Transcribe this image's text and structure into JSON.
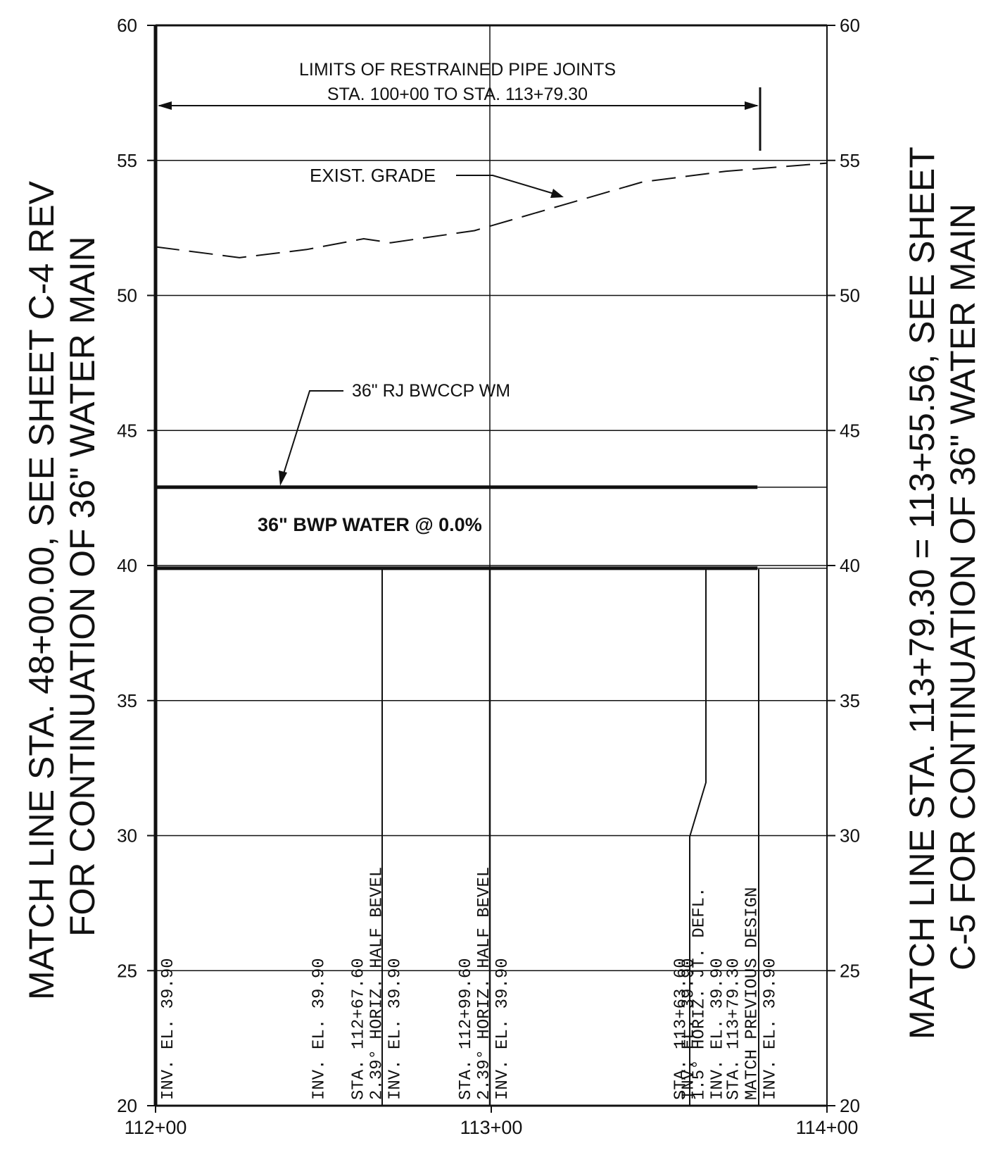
{
  "elevation_axis": {
    "min": 20,
    "max": 60,
    "ticks": [
      "20",
      "25",
      "30",
      "35",
      "40",
      "45",
      "50",
      "55",
      "60"
    ]
  },
  "station_axis": {
    "ticks": [
      "112+00",
      "113+00",
      "114+00"
    ]
  },
  "restrained_limits": {
    "line1": "LIMITS OF RESTRAINED PIPE JOINTS",
    "line2": "STA. 100+00 TO STA. 113+79.30"
  },
  "exist_grade_label": "EXIST.  GRADE",
  "exist_grade_profile": [
    {
      "sta": 112.0,
      "el": 51.8
    },
    {
      "sta": 112.25,
      "el": 51.4
    },
    {
      "sta": 112.45,
      "el": 51.7
    },
    {
      "sta": 112.62,
      "el": 52.1
    },
    {
      "sta": 112.7,
      "el": 51.95
    },
    {
      "sta": 112.95,
      "el": 52.4
    },
    {
      "sta": 113.2,
      "el": 53.3
    },
    {
      "sta": 113.45,
      "el": 54.2
    },
    {
      "sta": 113.7,
      "el": 54.6
    },
    {
      "sta": 114.0,
      "el": 54.9
    }
  ],
  "pipe": {
    "leader_label": "36\" RJ BWCCP WM",
    "profile_label": "36\"  BWP   WATER  @  0.0%",
    "top_el": 42.9,
    "invert_el": 39.9,
    "start_sta": 112.0,
    "end_sta": 113.793
  },
  "vertical_labels": [
    {
      "sta": 112.0,
      "lines": [
        "INV.  EL.  39.90"
      ]
    },
    {
      "sta": 112.45,
      "lines": [
        "INV.  EL.  39.90"
      ]
    },
    {
      "sta": 112.676,
      "lines": [
        "STA.  112+67.60",
        "2.39° HORIZ.  HALF  BEVEL",
        "INV.  EL.  39.90"
      ]
    },
    {
      "sta": 112.996,
      "lines": [
        "STA.  112+99.60",
        "2.39° HORIZ.  HALF  BEVEL",
        "INV.  EL.  39.90"
      ]
    },
    {
      "sta": 113.55,
      "lines": [
        "INV.  EL.  39.90"
      ]
    },
    {
      "sta": 113.636,
      "lines": [
        "STA.  113+63.60",
        "1.5° HORIZ.  JT.  DEFL.",
        "INV.  EL.  39.90"
      ]
    },
    {
      "sta": 113.793,
      "lines": [
        "STA.  113+79.30",
        "MATCH  PREVIOUS  DESIGN",
        "INV.  EL.  39.90"
      ]
    }
  ],
  "match_line_left": {
    "line1": "MATCH LINE STA. 48+00.00, SEE SHEET C-4 REV",
    "line2": "FOR CONTINUATION OF 36\" WATER MAIN"
  },
  "match_line_right": {
    "line1": "MATCH LINE STA. 113+79.30 = 113+55.56, SEE SHEET",
    "line2": "C-5 FOR CONTINUATION OF 36\" WATER MAIN"
  }
}
